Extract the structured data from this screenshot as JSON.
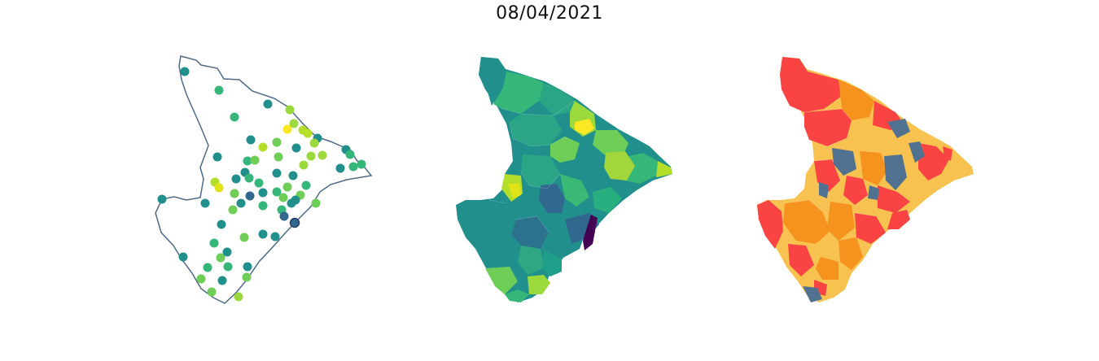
{
  "title": "08/04/2021",
  "colors": {
    "outline": "#4e6a86",
    "viridis": [
      "#440154",
      "#31688e",
      "#21908d",
      "#35b779",
      "#6ece58",
      "#b5de2b",
      "#fde725"
    ],
    "risk": [
      "#fa4343",
      "#f6921e",
      "#f8c250",
      "#50718f"
    ]
  },
  "panels": [
    {
      "name": "points-map",
      "type": "points"
    },
    {
      "name": "choropleth-viridis",
      "type": "choropleth"
    },
    {
      "name": "choropleth-risk",
      "type": "choropleth"
    }
  ]
}
